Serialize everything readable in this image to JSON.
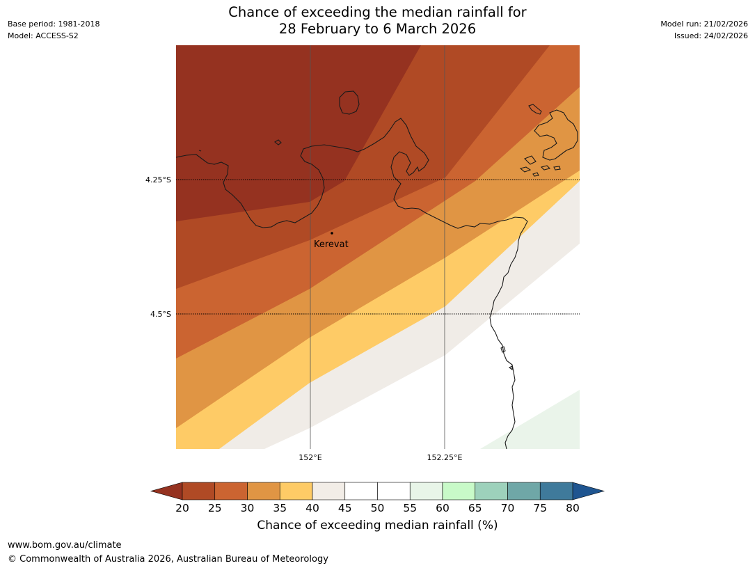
{
  "header": {
    "title_line1": "Chance of exceeding the median rainfall for",
    "title_line2": "28 February to 6 March 2026",
    "base_period": "Base period: 1981-2018",
    "model": "Model: ACCESS-S2",
    "model_run": "Model run: 21/02/2026",
    "issued": "Issued: 24/02/2026"
  },
  "map": {
    "lat_labels": [
      "4.25°S",
      "4.5°S"
    ],
    "lon_labels": [
      "152°E",
      "152.25°E"
    ],
    "place_label": "Kerevat"
  },
  "colorbar": {
    "ticks": [
      "20",
      "25",
      "30",
      "35",
      "40",
      "45",
      "50",
      "55",
      "60",
      "65",
      "70",
      "75",
      "80"
    ],
    "colors": [
      "#953220",
      "#b04a25",
      "#cb6431",
      "#e09544",
      "#fecb66",
      "#f2ede7",
      "#ffffff",
      "#ffffff",
      "#e8f5e8",
      "#c8fac8",
      "#9dd1bb",
      "#6fa7a7",
      "#3f7a9b"
    ],
    "under_color": "#953220",
    "over_color": "#1f5590",
    "label": "Chance of exceeding median rainfall (%)"
  },
  "footer": {
    "url": "www.bom.gov.au/climate",
    "copyright": "© Commonwealth of Australia 2026, Australian Bureau of Meteorology"
  }
}
